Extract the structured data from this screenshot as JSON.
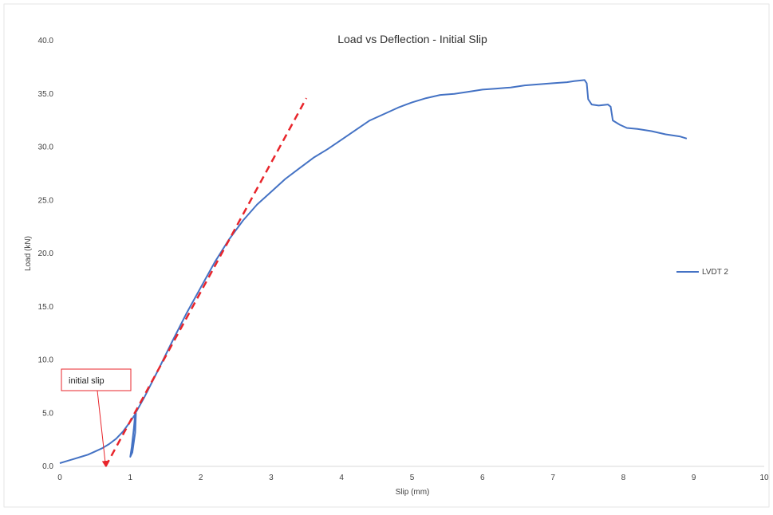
{
  "chart_data": {
    "type": "line",
    "title": "Load vs Deflection - Initial Slip",
    "xlabel": "Slip (mm)",
    "ylabel": "Load (kN)",
    "xlim": [
      0,
      10
    ],
    "ylim": [
      0,
      40
    ],
    "x_ticks": [
      "0",
      "1",
      "2",
      "3",
      "4",
      "5",
      "6",
      "7",
      "8",
      "9",
      "10"
    ],
    "y_ticks": [
      "0.0",
      "5.0",
      "10.0",
      "15.0",
      "20.0",
      "25.0",
      "30.0",
      "35.0",
      "40.0"
    ],
    "grid": false,
    "legend_position": "right",
    "series": [
      {
        "name": "LVDT 2",
        "color": "#4472C4",
        "points": [
          [
            0,
            0.3
          ],
          [
            0.1,
            0.5
          ],
          [
            0.2,
            0.7
          ],
          [
            0.3,
            0.9
          ],
          [
            0.4,
            1.1
          ],
          [
            0.5,
            1.4
          ],
          [
            0.6,
            1.7
          ],
          [
            0.7,
            2.1
          ],
          [
            0.8,
            2.6
          ],
          [
            0.9,
            3.3
          ],
          [
            1.0,
            4.2
          ],
          [
            1.05,
            4.7
          ],
          [
            1.08,
            5.0
          ],
          [
            1.07,
            3.2
          ],
          [
            1.03,
            1.3
          ],
          [
            1.0,
            0.9
          ],
          [
            1.02,
            1.8
          ],
          [
            1.05,
            3.5
          ],
          [
            1.07,
            5.0
          ],
          [
            1.1,
            5.3
          ],
          [
            1.2,
            6.5
          ],
          [
            1.4,
            9.1
          ],
          [
            1.6,
            11.8
          ],
          [
            1.8,
            14.4
          ],
          [
            2.0,
            16.8
          ],
          [
            2.2,
            19.2
          ],
          [
            2.4,
            21.3
          ],
          [
            2.6,
            23.1
          ],
          [
            2.8,
            24.6
          ],
          [
            3.0,
            25.8
          ],
          [
            3.2,
            27.0
          ],
          [
            3.4,
            28.0
          ],
          [
            3.6,
            29.0
          ],
          [
            3.8,
            29.8
          ],
          [
            4.0,
            30.7
          ],
          [
            4.2,
            31.6
          ],
          [
            4.4,
            32.5
          ],
          [
            4.6,
            33.1
          ],
          [
            4.8,
            33.7
          ],
          [
            5.0,
            34.2
          ],
          [
            5.2,
            34.6
          ],
          [
            5.4,
            34.9
          ],
          [
            5.6,
            35.0
          ],
          [
            5.8,
            35.2
          ],
          [
            6.0,
            35.4
          ],
          [
            6.2,
            35.5
          ],
          [
            6.4,
            35.6
          ],
          [
            6.6,
            35.8
          ],
          [
            6.8,
            35.9
          ],
          [
            7.0,
            36.0
          ],
          [
            7.2,
            36.1
          ],
          [
            7.3,
            36.2
          ],
          [
            7.45,
            36.3
          ],
          [
            7.48,
            36.0
          ],
          [
            7.5,
            34.5
          ],
          [
            7.55,
            34.0
          ],
          [
            7.65,
            33.9
          ],
          [
            7.78,
            34.0
          ],
          [
            7.82,
            33.8
          ],
          [
            7.85,
            32.5
          ],
          [
            7.95,
            32.1
          ],
          [
            8.05,
            31.8
          ],
          [
            8.2,
            31.7
          ],
          [
            8.4,
            31.5
          ],
          [
            8.6,
            31.2
          ],
          [
            8.8,
            31.0
          ],
          [
            8.9,
            30.8
          ]
        ]
      }
    ],
    "reference_line": {
      "color": "#E8252B",
      "style": "dashed",
      "points": [
        [
          0.65,
          0
        ],
        [
          3.5,
          34.6
        ]
      ]
    },
    "annotation": {
      "text": "initial slip",
      "border_color": "#E8252B",
      "arrow_to": [
        0.65,
        0
      ]
    }
  }
}
